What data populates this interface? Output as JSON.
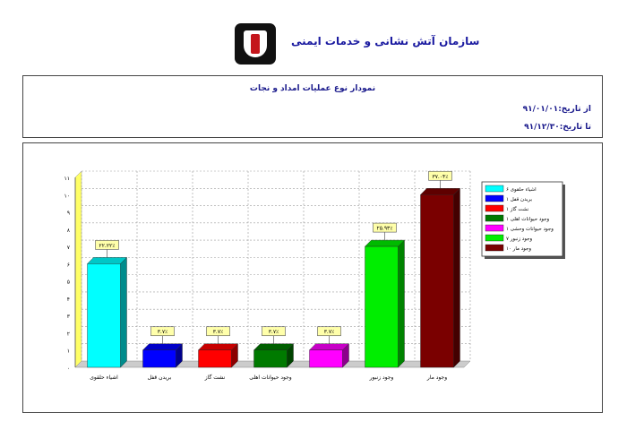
{
  "header": {
    "org_name": "سازمان آتش نشانی و خدمات ایمنی"
  },
  "report": {
    "title": "نمودار نوع عملیات امداد و نجات",
    "from_label": "از تاریخ:",
    "from_date": "۹۱/۰۱/۰۱",
    "to_label": "تا تاریخ:",
    "to_date": "۹۱/۱۲/۳۰"
  },
  "chart_data": {
    "type": "bar",
    "categories": [
      "اشیاء حلقوی",
      "بریدن قفل",
      "نشت گاز",
      "وجود حیوانات اهلی",
      "",
      "وجود زنبور",
      "وجود مار"
    ],
    "values": [
      6,
      1,
      1,
      1,
      1,
      7,
      10
    ],
    "data_labels": [
      "۲۲.۲۲٪",
      "۳.۷٪",
      "۳.۷٪",
      "۳.۷٪",
      "۳.۷٪",
      "۲۵.۹۳٪",
      "۳۷.۰۴٪"
    ],
    "colors": [
      "#00ffff",
      "#0000ff",
      "#ff0000",
      "#007a00",
      "#ff00ff",
      "#00ee00",
      "#7a0000"
    ],
    "ylim": [
      0,
      11
    ],
    "yticks": [
      "۰",
      "۱",
      "۲",
      "۳",
      "۴",
      "۵",
      "۶",
      "۷",
      "۸",
      "۹",
      "۱۰",
      "۱۱"
    ],
    "grid": true,
    "legend_position": "right",
    "legend": [
      {
        "label": "اشیاء حلقوی ۶",
        "color": "#00ffff"
      },
      {
        "label": "بریدن قفل ۱",
        "color": "#0000ff"
      },
      {
        "label": "نشت گاز ۱",
        "color": "#ff0000"
      },
      {
        "label": "وجود حیوانات اهلی ۱",
        "color": "#007a00"
      },
      {
        "label": "وجود حیوانات وحشی ۱",
        "color": "#ff00ff"
      },
      {
        "label": "وجود زنبور ۷",
        "color": "#00ee00"
      },
      {
        "label": "وجود مار ۱۰",
        "color": "#7a0000"
      }
    ]
  }
}
